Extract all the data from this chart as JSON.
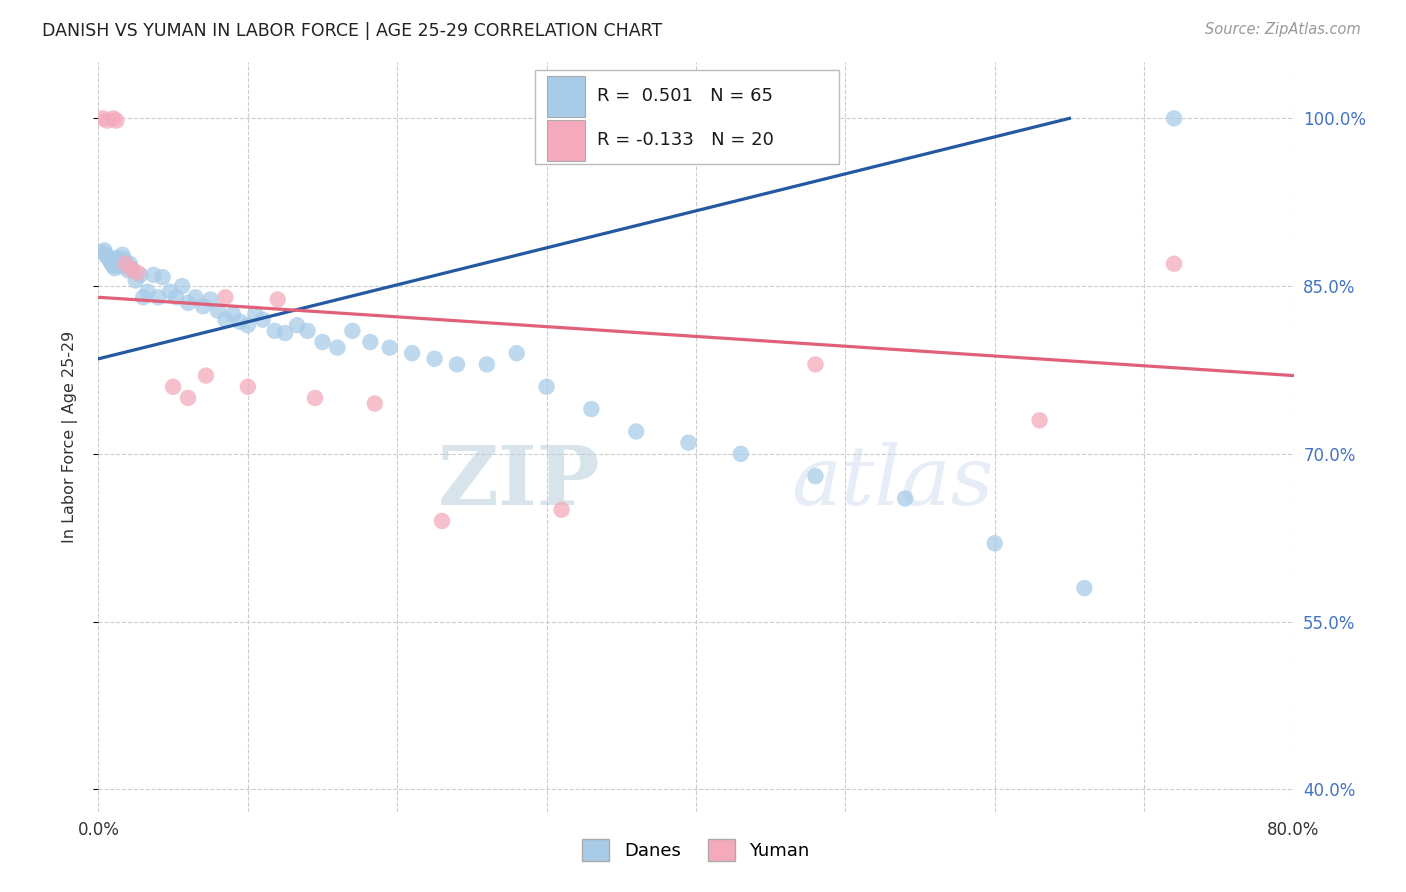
{
  "title": "DANISH VS YUMAN IN LABOR FORCE | AGE 25-29 CORRELATION CHART",
  "source": "Source: ZipAtlas.com",
  "ylabel": "In Labor Force | Age 25-29",
  "xlim": [
    0.0,
    0.8
  ],
  "ylim": [
    0.38,
    1.05
  ],
  "yticks": [
    0.4,
    0.55,
    0.7,
    0.85,
    1.0
  ],
  "ytick_labels": [
    "40.0%",
    "55.0%",
    "70.0%",
    "85.0%",
    "100.0%"
  ],
  "xticks": [
    0.0,
    0.1,
    0.2,
    0.3,
    0.4,
    0.5,
    0.6,
    0.7,
    0.8
  ],
  "xtick_labels_show": [
    "0.0%",
    "",
    "",
    "",
    "",
    "",
    "",
    "",
    "80.0%"
  ],
  "legend_r_blue": "R =  0.501",
  "legend_n_blue": "N = 65",
  "legend_r_pink": "R = -0.133",
  "legend_n_pink": "N = 20",
  "legend_label_blue": "Danes",
  "legend_label_pink": "Yuman",
  "blue_dot_color": "#A8CBE8",
  "blue_line_color": "#2458A0",
  "pink_dot_color": "#F4AABC",
  "pink_line_color": "#E0607A",
  "watermark_zip": "ZIP",
  "watermark_atlas": "atlas",
  "background_color": "#FFFFFF",
  "grid_color": "#CCCCCC",
  "danes_x": [
    0.003,
    0.004,
    0.005,
    0.006,
    0.007,
    0.008,
    0.009,
    0.01,
    0.011,
    0.012,
    0.013,
    0.014,
    0.015,
    0.016,
    0.017,
    0.018,
    0.019,
    0.02,
    0.021,
    0.022,
    0.025,
    0.028,
    0.03,
    0.033,
    0.037,
    0.04,
    0.043,
    0.048,
    0.052,
    0.056,
    0.06,
    0.065,
    0.07,
    0.075,
    0.08,
    0.085,
    0.09,
    0.095,
    0.1,
    0.105,
    0.11,
    0.118,
    0.125,
    0.133,
    0.14,
    0.15,
    0.16,
    0.17,
    0.182,
    0.195,
    0.21,
    0.225,
    0.24,
    0.26,
    0.28,
    0.3,
    0.33,
    0.36,
    0.395,
    0.43,
    0.48,
    0.54,
    0.6,
    0.66,
    0.72
  ],
  "danes_y": [
    0.88,
    0.882,
    0.878,
    0.876,
    0.875,
    0.872,
    0.87,
    0.868,
    0.866,
    0.875,
    0.873,
    0.87,
    0.868,
    0.878,
    0.874,
    0.87,
    0.868,
    0.864,
    0.87,
    0.866,
    0.855,
    0.86,
    0.84,
    0.845,
    0.86,
    0.84,
    0.858,
    0.845,
    0.84,
    0.85,
    0.835,
    0.84,
    0.832,
    0.838,
    0.828,
    0.82,
    0.825,
    0.818,
    0.815,
    0.825,
    0.82,
    0.81,
    0.808,
    0.815,
    0.81,
    0.8,
    0.795,
    0.81,
    0.8,
    0.795,
    0.79,
    0.785,
    0.78,
    0.78,
    0.79,
    0.76,
    0.74,
    0.72,
    0.71,
    0.7,
    0.68,
    0.66,
    0.62,
    0.58,
    1.0
  ],
  "yuman_x": [
    0.003,
    0.006,
    0.01,
    0.012,
    0.018,
    0.022,
    0.026,
    0.05,
    0.06,
    0.072,
    0.085,
    0.1,
    0.12,
    0.145,
    0.185,
    0.23,
    0.31,
    0.48,
    0.63,
    0.72
  ],
  "yuman_y": [
    1.0,
    0.998,
    1.0,
    0.998,
    0.87,
    0.865,
    0.862,
    0.76,
    0.75,
    0.77,
    0.84,
    0.76,
    0.838,
    0.75,
    0.745,
    0.64,
    0.65,
    0.78,
    0.73,
    0.87
  ]
}
